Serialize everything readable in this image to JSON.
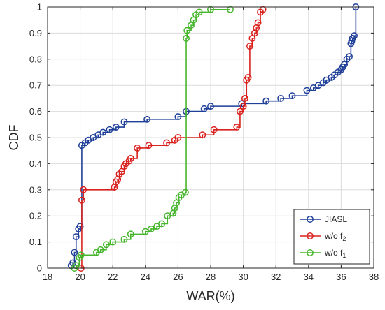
{
  "chart_data": {
    "type": "line",
    "title": "",
    "xlabel": "WAR(%)",
    "ylabel": "CDF",
    "xlim": [
      18,
      38
    ],
    "ylim": [
      0,
      1
    ],
    "xticks": [
      18,
      20,
      22,
      24,
      26,
      28,
      30,
      32,
      34,
      36,
      38
    ],
    "yticks": [
      0,
      0.1,
      0.2,
      0.3,
      0.4,
      0.5,
      0.6,
      0.7,
      0.8,
      0.9,
      1
    ],
    "grid": true,
    "legend": {
      "position": "bottom-right"
    },
    "series": [
      {
        "name": "JIASL",
        "subscript": "",
        "color": "#1f3f99",
        "marker": "circle",
        "x": [
          19.45,
          19.55,
          19.65,
          19.75,
          19.9,
          20.0,
          20.1,
          20.3,
          20.5,
          20.8,
          21.1,
          21.4,
          21.8,
          22.2,
          22.7,
          24.1,
          26.0,
          26.5,
          27.6,
          28.0,
          29.9,
          31.4,
          32.3,
          33.0,
          33.9,
          34.3,
          34.6,
          34.9,
          35.1,
          35.4,
          35.6,
          35.8,
          36.0,
          36.1,
          36.2,
          36.35,
          36.5,
          36.6,
          36.65,
          36.7,
          36.8,
          36.9
        ],
        "y": [
          0.01,
          0.02,
          0.06,
          0.12,
          0.15,
          0.16,
          0.47,
          0.48,
          0.49,
          0.5,
          0.51,
          0.52,
          0.53,
          0.54,
          0.56,
          0.57,
          0.58,
          0.6,
          0.61,
          0.62,
          0.63,
          0.64,
          0.65,
          0.66,
          0.68,
          0.69,
          0.7,
          0.71,
          0.72,
          0.73,
          0.74,
          0.75,
          0.76,
          0.77,
          0.78,
          0.8,
          0.81,
          0.86,
          0.87,
          0.88,
          0.89,
          1.0
        ]
      },
      {
        "name": "w/o f",
        "subscript": "2",
        "color": "#d9221e",
        "marker": "circle",
        "x": [
          20.05,
          20.1,
          20.2,
          22.1,
          22.2,
          22.3,
          22.4,
          22.55,
          22.7,
          22.8,
          23.0,
          23.1,
          23.5,
          24.2,
          25.3,
          25.8,
          26.0,
          27.5,
          28.2,
          29.6,
          29.8,
          30.0,
          30.1,
          30.2,
          30.3,
          30.4,
          30.55,
          30.7,
          30.8,
          30.9,
          31.05,
          31.2
        ],
        "y": [
          0.0,
          0.26,
          0.3,
          0.31,
          0.33,
          0.34,
          0.36,
          0.37,
          0.39,
          0.4,
          0.41,
          0.42,
          0.46,
          0.47,
          0.48,
          0.49,
          0.5,
          0.51,
          0.53,
          0.54,
          0.6,
          0.62,
          0.65,
          0.72,
          0.73,
          0.85,
          0.88,
          0.9,
          0.92,
          0.94,
          0.98,
          0.99
        ]
      },
      {
        "name": "w/o f",
        "subscript": "1",
        "color": "#46b52c",
        "marker": "circle",
        "x": [
          19.65,
          19.75,
          19.95,
          20.05,
          21.0,
          21.25,
          21.6,
          22.0,
          22.7,
          23.1,
          24.0,
          24.35,
          24.7,
          25.0,
          25.35,
          25.7,
          25.8,
          25.9,
          26.05,
          26.2,
          26.45,
          26.5,
          26.55,
          26.8,
          26.95,
          27.1,
          27.3,
          28.0,
          29.2
        ],
        "y": [
          0.0,
          0.01,
          0.04,
          0.05,
          0.06,
          0.07,
          0.09,
          0.1,
          0.11,
          0.13,
          0.14,
          0.15,
          0.16,
          0.17,
          0.2,
          0.21,
          0.23,
          0.25,
          0.27,
          0.28,
          0.29,
          0.88,
          0.91,
          0.93,
          0.95,
          0.97,
          0.98,
          0.99,
          0.99
        ]
      }
    ]
  }
}
